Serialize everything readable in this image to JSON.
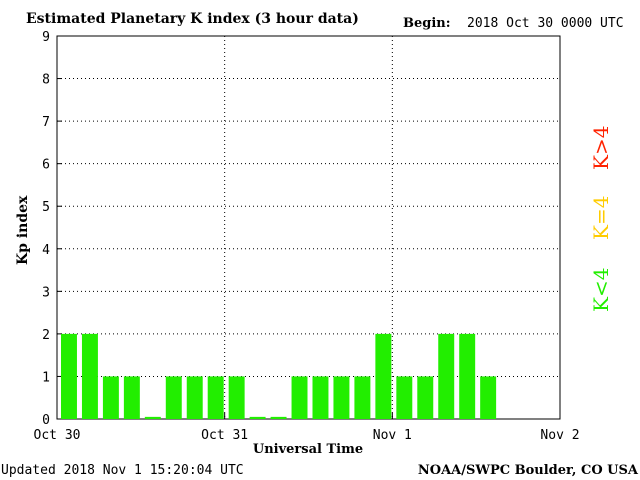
{
  "chart_data": {
    "type": "bar",
    "title": "Estimated Planetary K index (3 hour data)",
    "begin_label": "Begin:",
    "begin_value": "2018 Oct 30 0000 UTC",
    "xlabel": "Universal Time",
    "ylabel": "Kp index",
    "ylim": [
      0,
      9
    ],
    "y_ticks": [
      "0",
      "1",
      "2",
      "3",
      "4",
      "5",
      "6",
      "7",
      "8",
      "9"
    ],
    "x_ticks": [
      "Oct 30",
      "Oct 31",
      "Nov 1",
      "Nov 2"
    ],
    "slots_per_day": 8,
    "total_slots": 24,
    "values": [
      2,
      2,
      1,
      1,
      0.05,
      1,
      1,
      1,
      1,
      0.05,
      0.05,
      1,
      1,
      1,
      1,
      2,
      1,
      1,
      2,
      2,
      1
    ],
    "grid": true,
    "legend": {
      "placement": "right",
      "entries": [
        {
          "label": "K<4",
          "color": "#22ee00"
        },
        {
          "label": "K=4",
          "color": "#ffcc00"
        },
        {
          "label": "K>4",
          "color": "#ff2200"
        }
      ]
    },
    "bar_color": "#22ee00"
  },
  "footer": {
    "updated": "Updated 2018 Nov  1 15:20:04 UTC",
    "source": "NOAA/SWPC Boulder, CO USA"
  }
}
